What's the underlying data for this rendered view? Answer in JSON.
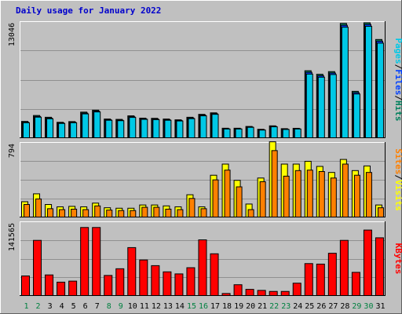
{
  "title": "Daily usage for January 2022",
  "colors": {
    "background": "#c0c0c0",
    "title": "#0000cc",
    "hits": "#00805c",
    "files": "#0040ff",
    "pages": "#00c8e6",
    "visits": "#ffff00",
    "sites": "#ff8000",
    "kbytes": "#ff0000",
    "weekend_label": "#008040",
    "weekday_label": "#000000"
  },
  "chart_data": [
    {
      "type": "bar",
      "name": "hits-files-pages",
      "axis_max_label": "13046",
      "legend": [
        "Pages",
        "/",
        "Files",
        "/",
        "Hits"
      ],
      "ymax": 13046,
      "categories": [
        1,
        2,
        3,
        4,
        5,
        6,
        7,
        8,
        9,
        10,
        11,
        12,
        13,
        14,
        15,
        16,
        17,
        18,
        19,
        20,
        21,
        22,
        23,
        24,
        25,
        26,
        27,
        28,
        29,
        30,
        31
      ],
      "series": [
        {
          "name": "Hits",
          "values": [
            1850,
            2520,
            2320,
            1750,
            1830,
            2900,
            3120,
            2120,
            2080,
            2480,
            2220,
            2200,
            2120,
            2030,
            2320,
            2650,
            2820,
            1080,
            1080,
            1280,
            960,
            1350,
            1030,
            1070,
            7580,
            7180,
            7480,
            12930,
            5250,
            13000,
            11110
          ]
        },
        {
          "name": "Files",
          "values": [
            1760,
            2410,
            2220,
            1680,
            1760,
            2790,
            3020,
            2040,
            1990,
            2380,
            2140,
            2120,
            2040,
            1960,
            2230,
            2560,
            2730,
            1020,
            1020,
            1220,
            900,
            1280,
            970,
            1020,
            7400,
            7020,
            7320,
            12720,
            5100,
            12810,
            10920
          ]
        },
        {
          "name": "Pages",
          "values": [
            1700,
            2330,
            2150,
            1620,
            1700,
            2700,
            2920,
            1980,
            1930,
            2300,
            2080,
            2050,
            1980,
            1900,
            2160,
            2480,
            2650,
            990,
            990,
            1180,
            870,
            1240,
            940,
            990,
            7200,
            6850,
            7150,
            12500,
            4950,
            12600,
            10700
          ]
        }
      ]
    },
    {
      "type": "bar",
      "name": "visits-sites",
      "axis_max_label": "794",
      "legend": [
        "Sites",
        "/",
        "Visits"
      ],
      "ymax": 794,
      "categories": [
        1,
        2,
        3,
        4,
        5,
        6,
        7,
        8,
        9,
        10,
        11,
        12,
        13,
        14,
        15,
        16,
        17,
        18,
        19,
        20,
        21,
        22,
        23,
        24,
        25,
        26,
        27,
        28,
        29,
        30,
        31
      ],
      "series": [
        {
          "name": "Visits",
          "values": [
            165,
            250,
            135,
            110,
            115,
            110,
            150,
            100,
            95,
            95,
            130,
            130,
            120,
            110,
            240,
            110,
            450,
            570,
            395,
            140,
            420,
            810,
            570,
            570,
            600,
            545,
            480,
            620,
            500,
            550,
            130
          ]
        },
        {
          "name": "Sites",
          "values": [
            135,
            195,
            90,
            80,
            85,
            80,
            120,
            75,
            70,
            70,
            105,
            105,
            85,
            80,
            200,
            90,
            400,
            505,
            325,
            80,
            380,
            715,
            440,
            500,
            505,
            490,
            420,
            570,
            450,
            480,
            100
          ]
        }
      ]
    },
    {
      "type": "bar",
      "name": "kbytes",
      "axis_max_label": "141565",
      "legend": [
        "KBytes"
      ],
      "ymax": 141565,
      "categories": [
        1,
        2,
        3,
        4,
        5,
        6,
        7,
        8,
        9,
        10,
        11,
        12,
        13,
        14,
        15,
        16,
        17,
        18,
        19,
        20,
        21,
        22,
        23,
        24,
        25,
        26,
        27,
        28,
        29,
        30,
        31
      ],
      "series": [
        {
          "name": "KBytes",
          "values": [
            38000,
            107000,
            40000,
            26000,
            28000,
            132000,
            132000,
            39000,
            52000,
            93000,
            69000,
            58000,
            46000,
            42000,
            54000,
            108000,
            81000,
            4000,
            21000,
            12000,
            10000,
            8000,
            8000,
            24000,
            62000,
            61000,
            82000,
            107000,
            45000,
            127000,
            112000
          ]
        }
      ]
    }
  ],
  "x_labels": [
    "1",
    "2",
    "3",
    "4",
    "5",
    "6",
    "7",
    "8",
    "9",
    "10",
    "11",
    "12",
    "13",
    "14",
    "15",
    "16",
    "17",
    "18",
    "19",
    "20",
    "21",
    "22",
    "23",
    "24",
    "25",
    "26",
    "27",
    "28",
    "29",
    "30",
    "31"
  ],
  "weekend_days": [
    1,
    2,
    8,
    9,
    15,
    16,
    22,
    23,
    29,
    30
  ]
}
